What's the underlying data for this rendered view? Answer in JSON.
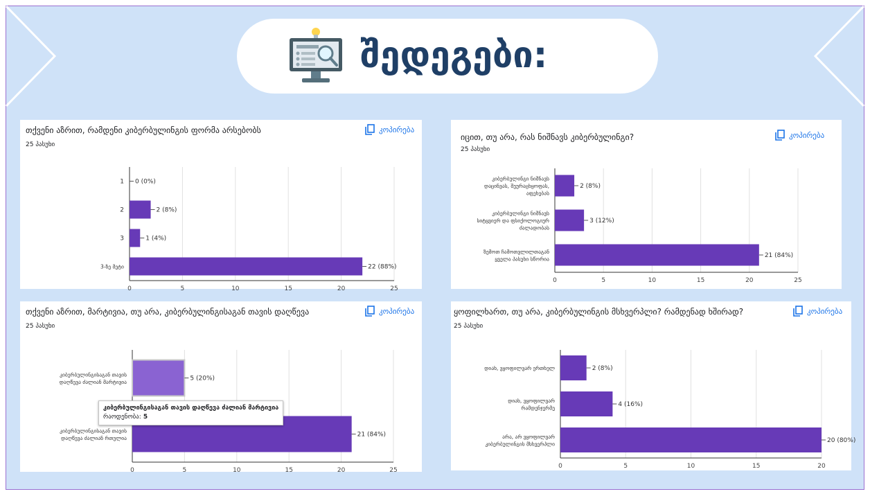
{
  "slide": {
    "title": "შედეგები:",
    "icon": "computer-monitor-search-icon"
  },
  "cards": [
    {
      "question": "თქვენი აზრით, რამდენი კიბერბულინგის ფორმა არსებობს",
      "responses": "25 პასუხი",
      "copy_label": "კოპირება",
      "chart_data": {
        "type": "bar",
        "orientation": "horizontal",
        "categories": [
          "1",
          "2",
          "3",
          "3-ზე მეტი"
        ],
        "values": [
          0,
          2,
          1,
          22
        ],
        "value_labels": [
          "0 (0%)",
          "2 (8%)",
          "1 (4%)",
          "22 (88%)"
        ],
        "xlim": [
          0,
          25
        ],
        "ticks": [
          "0",
          "5",
          "10",
          "15",
          "20",
          "25"
        ],
        "grid": true,
        "bar_color": "#673ab7"
      }
    },
    {
      "question": "იცით, თუ არა, რას ნიშნავს კიბერბულინგი?",
      "responses": "25 პასუხი",
      "copy_label": "კოპირება",
      "chart_data": {
        "type": "bar",
        "orientation": "horizontal",
        "categories": [
          [
            "კიბერბულინგი ნიშნავს",
            "დაცინვას, შეურაცხყოფას,",
            "აფეხებას"
          ],
          [
            "კიბერბულინგი ნიშნავს",
            "სიტყვიერ და ფსიქოლოგიურ",
            "ძალადობას"
          ],
          [
            "ზემოთ ჩამოთვლილთაგან",
            "ყველა პასუხი სწორია"
          ]
        ],
        "values": [
          2,
          3,
          21
        ],
        "value_labels": [
          "2 (8%)",
          "3 (12%)",
          "21 (84%)"
        ],
        "xlim": [
          0,
          25
        ],
        "ticks": [
          "0",
          "5",
          "10",
          "15",
          "20",
          "25"
        ],
        "grid": true,
        "bar_color": "#673ab7"
      }
    },
    {
      "question": "თქვენი აზრით, მარტივია, თუ არა, კიბერბულინგისაგან თავის დაღწევა",
      "responses": "25 პასუხი",
      "copy_label": "კოპირება",
      "tooltip": {
        "title": "კიბერბულინგისაგან თავის დაღწევა ძალიან მარტივია",
        "label": "რაოდენობა:",
        "value": "5"
      },
      "chart_data": {
        "type": "bar",
        "orientation": "horizontal",
        "categories": [
          [
            "კიბერბულინგისაგან თავის",
            "დაღწევა ძალიან მარტივია"
          ],
          [
            "კიბერბულინგისაგან თავის",
            "დაღწევა ძალიან რთულია"
          ]
        ],
        "values": [
          5,
          21
        ],
        "value_labels": [
          "5 (20%)",
          "21 (84%)"
        ],
        "xlim": [
          0,
          25
        ],
        "ticks": [
          "0",
          "5",
          "10",
          "15",
          "20",
          "25"
        ],
        "grid": true,
        "bar_color": "#673ab7",
        "highlight_color": "#8a63d2"
      }
    },
    {
      "question": "ყოფილხართ, თუ არა,  კიბერბულინგის მსხვერპლი? რამდენად ხშირად?",
      "responses": "25 პასუხი",
      "copy_label": "კოპირება",
      "chart_data": {
        "type": "bar",
        "orientation": "horizontal",
        "categories": [
          [
            "დიახ, ვყოფილვარ ერთხელ"
          ],
          [
            "დიახ, ვყოფილვარ",
            "რამდენჯერმე"
          ],
          [
            "არა, არ ვყოფილვარ",
            "კიბერბულინგის მსხვერპლი"
          ]
        ],
        "values": [
          2,
          4,
          20
        ],
        "value_labels": [
          "2 (8%)",
          "4 (16%)",
          "20 (80%)"
        ],
        "xlim": [
          0,
          20
        ],
        "ticks": [
          "0",
          "5",
          "10",
          "15",
          "20"
        ],
        "grid": true,
        "bar_color": "#673ab7"
      }
    }
  ]
}
